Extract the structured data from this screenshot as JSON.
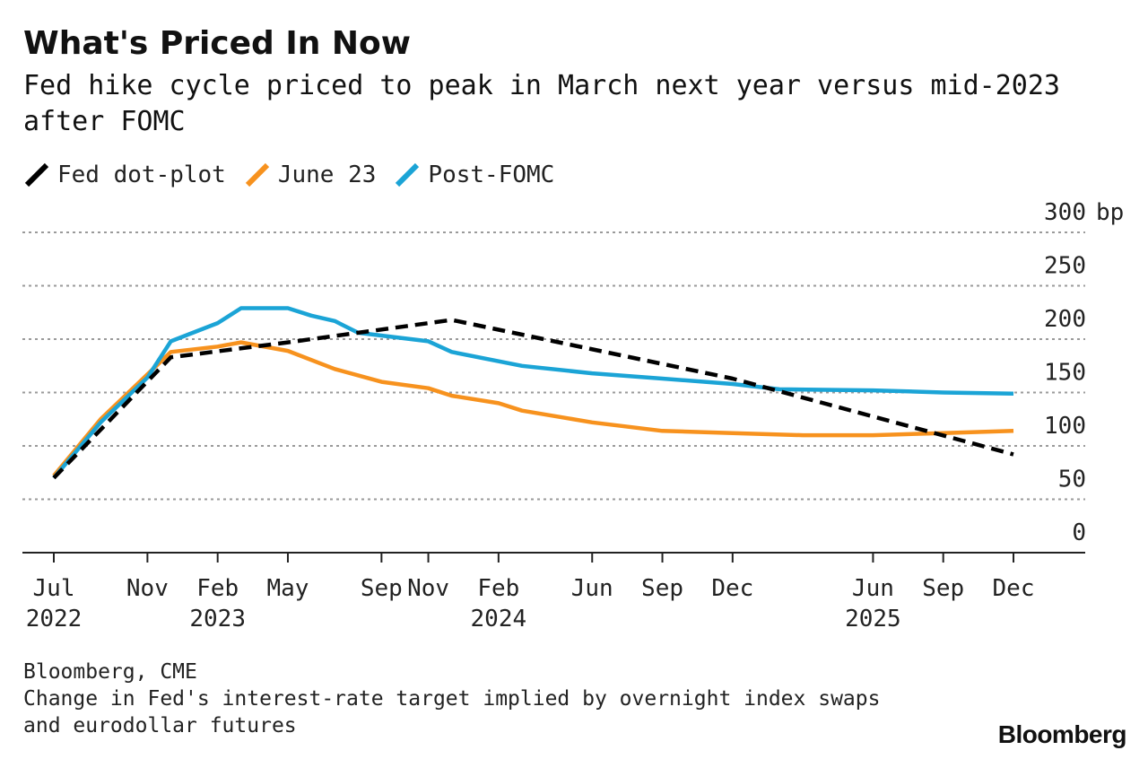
{
  "header": {
    "title": "What's Priced In Now",
    "subtitle": "Fed hike cycle priced to peak in March next year versus mid-2023 after FOMC"
  },
  "legend": [
    {
      "label": "Fed dot-plot",
      "color": "#000000",
      "style": "dashed"
    },
    {
      "label": "June 23",
      "color": "#f7921e",
      "style": "solid"
    },
    {
      "label": "Post-FOMC",
      "color": "#1ba4d6",
      "style": "solid"
    }
  ],
  "chart_data": {
    "type": "line",
    "title": "What's Priced In Now",
    "subtitle": "Fed hike cycle priced to peak in March next year versus mid-2023 after FOMC",
    "ylabel": "",
    "y_unit": "bp",
    "ylim": [
      0,
      300
    ],
    "yticks": [
      0,
      50,
      100,
      150,
      200,
      250,
      300
    ],
    "ytick_labels": [
      "0",
      "50",
      "100",
      "150",
      "200",
      "250",
      "300 bp"
    ],
    "xlim": [
      "2022-07",
      "2025-12"
    ],
    "xticks": [
      {
        "date": "2022-07",
        "label": "Jul",
        "year": "2022"
      },
      {
        "date": "2022-11",
        "label": "Nov",
        "year": ""
      },
      {
        "date": "2023-02",
        "label": "Feb",
        "year": "2023"
      },
      {
        "date": "2023-05",
        "label": "May",
        "year": ""
      },
      {
        "date": "2023-09",
        "label": "Sep",
        "year": ""
      },
      {
        "date": "2023-11",
        "label": "Nov",
        "year": ""
      },
      {
        "date": "2024-02",
        "label": "Feb",
        "year": "2024"
      },
      {
        "date": "2024-06",
        "label": "Jun",
        "year": ""
      },
      {
        "date": "2024-09",
        "label": "Sep",
        "year": ""
      },
      {
        "date": "2024-12",
        "label": "Dec",
        "year": ""
      },
      {
        "date": "2025-06",
        "label": "Jun",
        "year": "2025"
      },
      {
        "date": "2025-09",
        "label": "Sep",
        "year": ""
      },
      {
        "date": "2025-12",
        "label": "Dec",
        "year": ""
      }
    ],
    "grid": true,
    "legend_position": "top-left",
    "axis_position": "right",
    "series": [
      {
        "name": "Fed dot-plot",
        "color": "#000000",
        "dashed": true,
        "points": [
          [
            "2022-07",
            70
          ],
          [
            "2022-12",
            183
          ],
          [
            "2023-05",
            197
          ],
          [
            "2023-12",
            218
          ],
          [
            "2024-12",
            163
          ],
          [
            "2025-12",
            92
          ]
        ]
      },
      {
        "name": "June 23",
        "color": "#f7921e",
        "dashed": false,
        "points": [
          [
            "2022-07",
            72
          ],
          [
            "2022-09",
            125
          ],
          [
            "2022-11",
            167
          ],
          [
            "2022-12",
            188
          ],
          [
            "2023-02",
            193
          ],
          [
            "2023-03",
            197
          ],
          [
            "2023-05",
            189
          ],
          [
            "2023-07",
            172
          ],
          [
            "2023-09",
            160
          ],
          [
            "2023-11",
            154
          ],
          [
            "2023-12",
            147
          ],
          [
            "2024-02",
            140
          ],
          [
            "2024-03",
            133
          ],
          [
            "2024-06",
            122
          ],
          [
            "2024-09",
            114
          ],
          [
            "2024-12",
            112
          ],
          [
            "2025-03",
            110
          ],
          [
            "2025-06",
            110
          ],
          [
            "2025-09",
            112
          ],
          [
            "2025-12",
            114
          ]
        ]
      },
      {
        "name": "Post-FOMC",
        "color": "#1ba4d6",
        "dashed": false,
        "points": [
          [
            "2022-07",
            70
          ],
          [
            "2022-09",
            122
          ],
          [
            "2022-11",
            164
          ],
          [
            "2022-12",
            198
          ],
          [
            "2023-02",
            215
          ],
          [
            "2023-03",
            229
          ],
          [
            "2023-05",
            229
          ],
          [
            "2023-06",
            222
          ],
          [
            "2023-07",
            217
          ],
          [
            "2023-08",
            206
          ],
          [
            "2023-11",
            198
          ],
          [
            "2023-12",
            188
          ],
          [
            "2024-03",
            175
          ],
          [
            "2024-06",
            168
          ],
          [
            "2024-09",
            163
          ],
          [
            "2024-12",
            158
          ],
          [
            "2025-02",
            153
          ],
          [
            "2025-06",
            152
          ],
          [
            "2025-09",
            150
          ],
          [
            "2025-12",
            149
          ]
        ]
      }
    ]
  },
  "footer": {
    "source": "Bloomberg, CME",
    "note": "Change in Fed's interest-rate target implied by overnight index swaps and eurodollar futures"
  },
  "brand": "Bloomberg"
}
